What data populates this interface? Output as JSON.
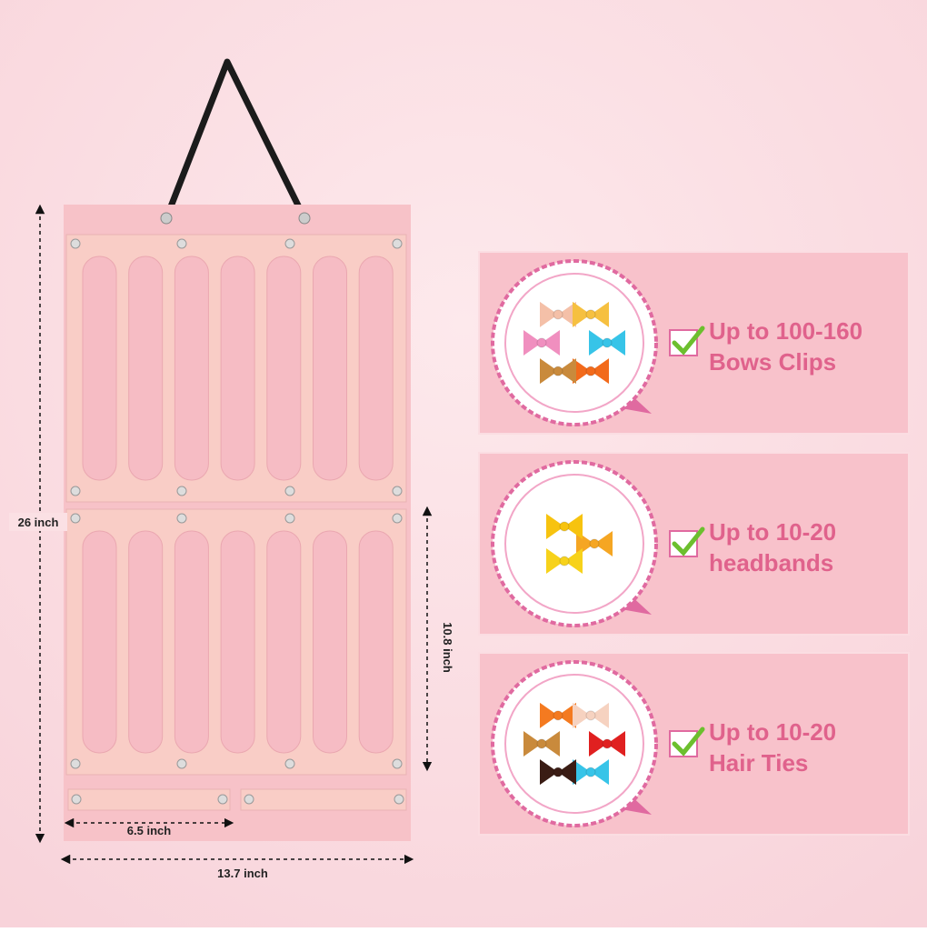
{
  "dimensions": {
    "height": "26 inch",
    "panel_height": "10.8 inch",
    "pocket_width": "6.5 inch",
    "width": "13.7 inch"
  },
  "features": [
    {
      "line1": "Up to 100-160",
      "line2": "Bows Clips"
    },
    {
      "line1": "Up to 10-20",
      "line2": "headbands"
    },
    {
      "line1": "Up to 10-20",
      "line2": "Hair Ties"
    }
  ]
}
